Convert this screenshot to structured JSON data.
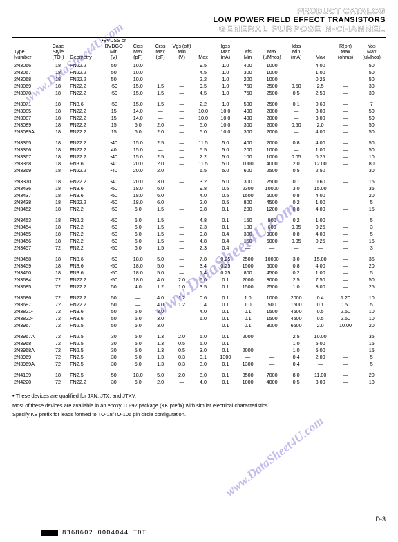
{
  "header": {
    "line1": "PRODUCT CATALOG",
    "line2": "LOW POWER FIELD EFFECT TRANSISTORS",
    "line3": "GENERAL PURPOSE N-CHANNEL"
  },
  "watermark_text": "www.DataSheet4U.com",
  "columns": [
    {
      "key": "type",
      "cls": "col-type",
      "lines": [
        "",
        "Type",
        "Number"
      ]
    },
    {
      "key": "case",
      "cls": "col-case",
      "lines": [
        "Case",
        "Style",
        "(TO-)"
      ]
    },
    {
      "key": "geo",
      "cls": "col-geo",
      "lines": [
        "",
        "",
        "Geometry"
      ]
    },
    {
      "key": "bvd",
      "cls": "col-bvd",
      "lines": [
        "•BVDSS or",
        "BVDGO",
        "Min",
        "(V)"
      ]
    },
    {
      "key": "ciss",
      "cls": "col-ciss",
      "lines": [
        "Ciss",
        "Max",
        "(pF)"
      ]
    },
    {
      "key": "crss",
      "cls": "col-crss",
      "lines": [
        "Crss",
        "Max",
        "(pF)"
      ]
    },
    {
      "key": "vmin",
      "cls": "col-vmin",
      "lines": [
        "Vgs (off)",
        "Min",
        "(V)"
      ]
    },
    {
      "key": "vmax",
      "cls": "col-vmax",
      "lines": [
        "",
        "Max",
        ""
      ]
    },
    {
      "key": "igss",
      "cls": "col-igss",
      "lines": [
        "Igss",
        "Max",
        "(nA)"
      ]
    },
    {
      "key": "ymin",
      "cls": "col-ymin",
      "lines": [
        "Yfs",
        "Min",
        ""
      ]
    },
    {
      "key": "ymax",
      "cls": "col-ymax",
      "lines": [
        "",
        "Max",
        "(uMhos)"
      ]
    },
    {
      "key": "imin",
      "cls": "col-imin",
      "lines": [
        "Idss",
        "Min",
        "(mA)"
      ]
    },
    {
      "key": "imax",
      "cls": "col-imax",
      "lines": [
        "",
        "Max",
        ""
      ]
    },
    {
      "key": "ron",
      "cls": "col-ron",
      "lines": [
        "R(on)",
        "Max",
        "(ohms)"
      ]
    },
    {
      "key": "yos",
      "cls": "col-yos",
      "lines": [
        "Yos",
        "Max",
        "(uMhos)"
      ]
    }
  ],
  "groups": [
    [
      [
        "2N3066",
        "18",
        "FN22.2",
        "50",
        "10.0",
        "—",
        "—",
        "9.5",
        "1.0",
        "400",
        "1000",
        "—",
        "4.00",
        "—",
        "50"
      ],
      [
        "2N3067",
        "18",
        "FN22.2",
        "50",
        "10.0",
        "—",
        "—",
        "4.5",
        "1.0",
        "300",
        "1000",
        "—",
        "1.00",
        "—",
        "50"
      ],
      [
        "2N3068",
        "18",
        "FN22.2",
        "50",
        "10.0",
        "—",
        "—",
        "2.2",
        "1.0",
        "200",
        "1000",
        "—",
        "0.25",
        "—",
        "50"
      ],
      [
        "2N3069",
        "18",
        "FN22.2",
        "•50",
        "15.0",
        "1.5",
        "—",
        "9.5",
        "1.0",
        "750",
        "2500",
        "0.50",
        "2.5",
        "—",
        "30"
      ],
      [
        "2N3070",
        "18",
        "FN22.2",
        "•50",
        "15.0",
        "1.5",
        "—",
        "4.5",
        "1.0",
        "750",
        "2500",
        "0.5",
        "2.50",
        "—",
        "30"
      ]
    ],
    [
      [
        "2N3071",
        "18",
        "FN3.6",
        "•50",
        "15.0",
        "1.5",
        "—",
        "2.2",
        "1.0",
        "500",
        "2500",
        "0.1",
        "0.60",
        "—",
        "7"
      ],
      [
        "2N3085",
        "18",
        "FN22.2",
        "15",
        "14.0",
        "—",
        "—",
        "10.0",
        "10.0",
        "400",
        "2000",
        "—",
        "3.00",
        "—",
        "50"
      ],
      [
        "2N3087",
        "18",
        "FN22.2",
        "15",
        "14.0",
        "—",
        "—",
        "10.0",
        "10.0",
        "400",
        "2000",
        "—",
        "3.00",
        "—",
        "50"
      ],
      [
        "2N3089",
        "18",
        "FN22.2",
        "15",
        "6.0",
        "2.0",
        "—",
        "5.0",
        "10.0",
        "300",
        "2000",
        "0.50",
        "2.0",
        "—",
        "50"
      ],
      [
        "2N3089A",
        "18",
        "FN22.2",
        "15",
        "6.0",
        "2.0",
        "—",
        "5.0",
        "10.0",
        "300",
        "2000",
        "—",
        "4.00",
        "—",
        "50"
      ]
    ],
    [
      [
        "2N3365",
        "18",
        "FN22.2",
        "•40",
        "15.0",
        "2.5",
        "—",
        "11.5",
        "5.0",
        "400",
        "2000",
        "0.8",
        "4.00",
        "—",
        "50"
      ],
      [
        "2N3366",
        "18",
        "FN22.2",
        "40",
        "15.0",
        "—",
        "—",
        "5.5",
        "5.0",
        "200",
        "1000",
        "—",
        "1.00",
        "—",
        "50"
      ],
      [
        "2N3367",
        "18",
        "FN22.2",
        "•40",
        "15.0",
        "2.5",
        "—",
        "2.2",
        "5.0",
        "100",
        "1000",
        "0.05",
        "0.25",
        "—",
        "10"
      ],
      [
        "2N3368",
        "18",
        "FN3.6",
        "•40",
        "20.0",
        "2.0",
        "—",
        "11.5",
        "5.0",
        "1000",
        "4000",
        "2.0",
        "12.00",
        "—",
        "80"
      ],
      [
        "2N3369",
        "18",
        "FN22.2",
        "•40",
        "20.0",
        "2.0",
        "—",
        "6.5",
        "5.0",
        "600",
        "2500",
        "0.5",
        "2.50",
        "—",
        "30"
      ]
    ],
    [
      [
        "2N3370",
        "18",
        "FN22.2",
        "•40",
        "20.0",
        "3.0",
        "—",
        "3.2",
        "5.0",
        "300",
        "2500",
        "0.1",
        "0.60",
        "—",
        "15"
      ],
      [
        "2N3436",
        "18",
        "FN3.6",
        "•50",
        "18.0",
        "6.0",
        "—",
        "9.8",
        "0.5",
        "2300",
        "10000",
        "3.0",
        "15.00",
        "—",
        "35"
      ],
      [
        "2N3437",
        "18",
        "FN3.6",
        "•50",
        "18.0",
        "6.0",
        "—",
        "4.0",
        "0.5",
        "1500",
        "6000",
        "0.8",
        "4.00",
        "—",
        "20"
      ],
      [
        "2N3438",
        "18",
        "FN22.2",
        "•50",
        "18.0",
        "6.0",
        "—",
        "2.0",
        "0.5",
        "800",
        "4500",
        "0.2",
        "1.00",
        "—",
        "5"
      ],
      [
        "2N3452",
        "18",
        "FN2.2",
        "•50",
        "6.0",
        "1.5",
        "—",
        "9.8",
        "0.1",
        "200",
        "1200",
        "0.8",
        "4.00",
        "—",
        "15"
      ]
    ],
    [
      [
        "2N3453",
        "18",
        "FN2.2",
        "•50",
        "6.0",
        "1.5",
        "—",
        "4.8",
        "0.1",
        "150",
        "900",
        "0.2",
        "1.00",
        "—",
        "5"
      ],
      [
        "2N3454",
        "18",
        "FN2.2",
        "•50",
        "6.0",
        "1.5",
        "—",
        "2.3",
        "0.1",
        "100",
        "600",
        "0.05",
        "0.25",
        "—",
        "3"
      ],
      [
        "2N3455",
        "18",
        "FN2.2",
        "•50",
        "6.0",
        "1.5",
        "—",
        "9.8",
        "0.4",
        "300",
        "9000",
        "0.8",
        "4.00",
        "—",
        "5"
      ],
      [
        "2N3456",
        "18",
        "FN2.2",
        "•50",
        "6.0",
        "1.5",
        "—",
        "4.8",
        "0.4",
        "150",
        "6000",
        "0.05",
        "0.25",
        "—",
        "15"
      ],
      [
        "2N3457",
        "72",
        "FN2.2",
        "•50",
        "6.0",
        "1.5",
        "—",
        "2.3",
        "0.4",
        "—",
        "—",
        "—",
        "—",
        "—",
        "3"
      ]
    ],
    [
      [
        "2N3458",
        "18",
        "FN3.6",
        "•50",
        "18.0",
        "5.0",
        "—",
        "7.8",
        "0.25",
        "2500",
        "10000",
        "3.0",
        "15.00",
        "—",
        "35"
      ],
      [
        "2N3459",
        "18",
        "FN3.6",
        "•50",
        "18.0",
        "5.0",
        "—",
        "3.4",
        "0.25",
        "1500",
        "6000",
        "0.8",
        "4.00",
        "—",
        "20"
      ],
      [
        "2N3460",
        "18",
        "FN3.6",
        "•50",
        "18.0",
        "5.0",
        "—",
        "1.4",
        "0.25",
        "800",
        "4500",
        "0.2",
        "1.00",
        "—",
        "5"
      ],
      [
        "2N3684",
        "72",
        "FN22.2",
        "•50",
        "18.0",
        "4.0",
        "2.0",
        "5.0",
        "0.1",
        "2000",
        "3000",
        "2.5",
        "7.50",
        "—",
        "50"
      ],
      [
        "2N3685",
        "72",
        "FN22.2",
        "50",
        "4.0",
        "1.2",
        "1.0",
        "3.5",
        "0.1",
        "1500",
        "2500",
        "1.0",
        "3.00",
        "—",
        "25"
      ]
    ],
    [
      [
        "2N3686",
        "72",
        "FN22.2",
        "50",
        "—",
        "4.0",
        "1.2",
        "0.6",
        "0.1",
        "1.0",
        "1000",
        "2000",
        "0.4",
        "1.20",
        "10"
      ],
      [
        "2N3687",
        "72",
        "FN22.2",
        "50",
        "—",
        "4.0",
        "1.2",
        "0.4",
        "0.1",
        "1.0",
        "500",
        "1500",
        "0.1",
        "0.50",
        "5"
      ],
      [
        "2N3821•",
        "72",
        "FN3.6",
        "50",
        "6.0",
        "3.0",
        "—",
        "4.0",
        "0.1",
        "0.1",
        "1500",
        "4500",
        "0.5",
        "2.50",
        "10"
      ],
      [
        "2N3822•",
        "72",
        "FN3.6",
        "50",
        "6.0",
        "3.0",
        "—",
        "6.0",
        "0.1",
        "0.1",
        "1500",
        "4500",
        "0.5",
        "2.50",
        "10"
      ],
      [
        "2N3967",
        "72",
        "FN2.5",
        "50",
        "6.0",
        "3.0",
        "—",
        "—",
        "0.1",
        "0.1",
        "3000",
        "6500",
        "2.0",
        "10.00",
        "20"
      ]
    ],
    [
      [
        "2N3967A",
        "72",
        "FN2.5",
        "30",
        "5.0",
        "1.3",
        "2.0",
        "5.0",
        "0.1",
        "2000",
        "—",
        "2.5",
        "10.00",
        "—",
        "35"
      ],
      [
        "2N3968",
        "72",
        "FN2.5",
        "30",
        "5.0",
        "1.3",
        "0.5",
        "5.0",
        "0.1",
        "—",
        "—",
        "1.0",
        "5.00",
        "—",
        "15"
      ],
      [
        "2N3968A",
        "72",
        "FN2.5",
        "30",
        "5.0",
        "1.3",
        "0.5",
        "3.0",
        "0.1",
        "2000",
        "—",
        "1.0",
        "5.00",
        "—",
        "15"
      ],
      [
        "2N3969",
        "72",
        "FN2.5",
        "30",
        "5.0",
        "1.3",
        "0.3",
        "0.1",
        "1300",
        "—",
        "—",
        "0.4",
        "2.00",
        "—",
        "5"
      ],
      [
        "2N3969A",
        "72",
        "FN2.5",
        "30",
        "5.0",
        "1.3",
        "0.3",
        "3.0",
        "0.1",
        "1300",
        "—",
        "0.4",
        "—",
        "—",
        "5"
      ]
    ],
    [
      [
        "2N4139",
        "18",
        "FN2.5",
        "50",
        "18.0",
        "5.0",
        "2.0",
        "8.0",
        "0.1",
        "3500",
        "7000",
        "8.0",
        "11.00",
        "—",
        "20"
      ],
      [
        "2N4220",
        "72",
        "FN22.2",
        "30",
        "6.0",
        "2.0",
        "—",
        "4.0",
        "0.1",
        "1000",
        "4000",
        "0.5",
        "3.00",
        "—",
        "10"
      ]
    ]
  ],
  "footnote": "• These devices are qualified for JAN, JTX, and JTXV.",
  "note1": "Most of these devices are available in an epoxy TO-92 package (KK prefix) with similar electrical characteristics.",
  "note2": "Specify KB prefix for leads formed to TO-18/TO-106 pin circle configuration.",
  "pagenum": "D-3",
  "barcode": "8368602 0004044 TDT"
}
